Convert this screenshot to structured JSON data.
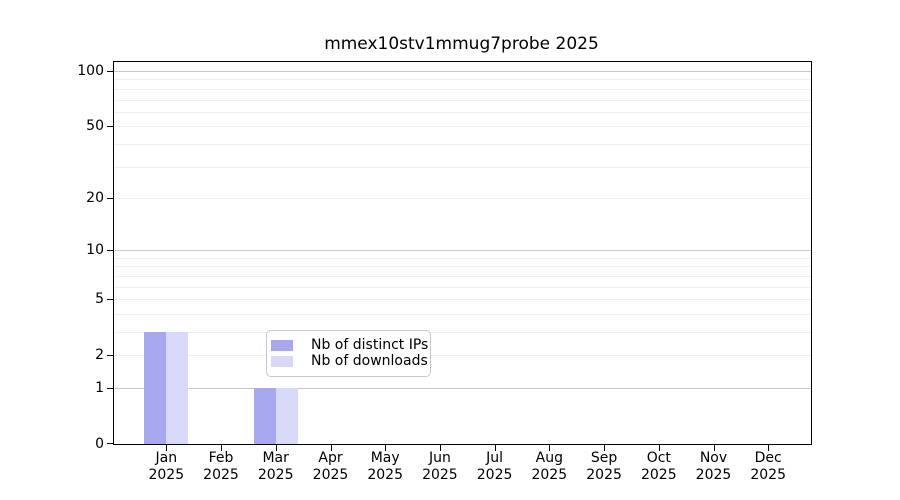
{
  "title": "mmex10stv1mmug7probe 2025",
  "colors": {
    "distinct_ips": "#a8a8f0",
    "downloads": "#d8d8f8",
    "axis": "#000000",
    "grid_major": "#c9c9c9",
    "grid_minor": "#efefef"
  },
  "y_axis": {
    "tick_labels": [
      "100",
      "50",
      "20",
      "10",
      "5",
      "2",
      "1",
      "0"
    ],
    "tick_values": [
      100,
      50,
      20,
      10,
      5,
      2,
      1,
      0
    ]
  },
  "x_axis": {
    "months": [
      "Jan",
      "Feb",
      "Mar",
      "Apr",
      "May",
      "Jun",
      "Jul",
      "Aug",
      "Sep",
      "Oct",
      "Nov",
      "Dec"
    ],
    "year": "2025"
  },
  "legend": {
    "items": [
      {
        "label": "Nb of distinct IPs",
        "color_key": "distinct_ips"
      },
      {
        "label": "Nb of downloads",
        "color_key": "downloads"
      }
    ]
  },
  "chart_data": {
    "type": "bar",
    "title": "mmex10stv1mmug7probe 2025",
    "categories": [
      "Jan 2025",
      "Feb 2025",
      "Mar 2025",
      "Apr 2025",
      "May 2025",
      "Jun 2025",
      "Jul 2025",
      "Aug 2025",
      "Sep 2025",
      "Oct 2025",
      "Nov 2025",
      "Dec 2025"
    ],
    "series": [
      {
        "name": "Nb of distinct IPs",
        "color": "#a8a8f0",
        "values": [
          3,
          0,
          1,
          0,
          0,
          0,
          0,
          0,
          0,
          0,
          0,
          0
        ]
      },
      {
        "name": "Nb of downloads",
        "color": "#d8d8f8",
        "values": [
          3,
          0,
          1,
          0,
          0,
          0,
          0,
          0,
          0,
          0,
          0,
          0
        ]
      }
    ],
    "xlabel": "",
    "ylabel": "",
    "y_scale": "log10(1+x)",
    "y_ticks": [
      0,
      1,
      2,
      5,
      10,
      20,
      50,
      100
    ],
    "ylim": [
      0,
      110
    ],
    "grid": true,
    "grid_major_at": [
      1,
      10,
      100
    ],
    "grid_minor_at": [
      2,
      3,
      4,
      5,
      6,
      7,
      8,
      9,
      20,
      30,
      40,
      50,
      60,
      70,
      80,
      90
    ],
    "legend_position": "lower center, inside plot"
  }
}
